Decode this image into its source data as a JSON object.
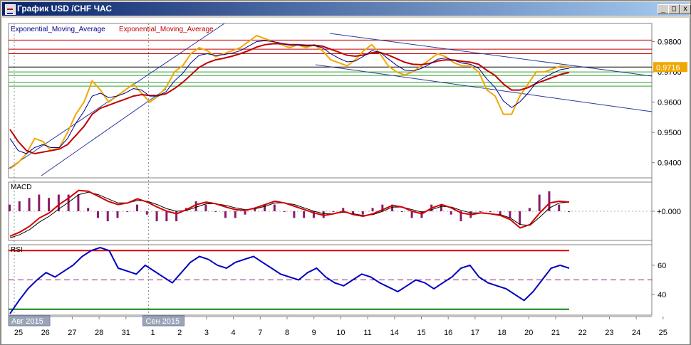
{
  "window": {
    "title": "График USD /CHF  ЧАС",
    "min_glyph": "_",
    "max_glyph": "□",
    "close_glyph": "x"
  },
  "chart_data": [
    {
      "type": "line",
      "panel": "price",
      "legend": [
        "Exponential_Moving_Average",
        "Exponential_Moving_Average"
      ],
      "legend_colors": [
        "#00008b",
        "#c00000"
      ],
      "y_ticks": [
        0.94,
        0.95,
        0.96,
        0.97,
        0.98
      ],
      "y_tick_labels": [
        "0.9400",
        "0.9500",
        "0.9600",
        "0.9700",
        "0.9800"
      ],
      "ylim": [
        0.935,
        0.986
      ],
      "current_price_label": "0.9716",
      "current_price": 0.9716,
      "x_ticks": [
        "25",
        "26",
        "27",
        "28",
        "31",
        "1",
        "2",
        "3",
        "4",
        "7",
        "8",
        "9",
        "10",
        "11",
        "14",
        "15",
        "16",
        "17",
        "18",
        "20",
        "21",
        "22",
        "23",
        "24",
        "25"
      ],
      "x_month_labels": [
        {
          "label": "Авг 2015",
          "at": "25"
        },
        {
          "label": "Сен 2015",
          "at": "1"
        }
      ],
      "horizontal_levels_red": [
        0.9805,
        0.9775,
        0.976
      ],
      "horizontal_level_black": 0.9716,
      "horizontal_levels_green": [
        0.97,
        0.9688,
        0.9666,
        0.9653
      ],
      "price": [
        0.938,
        0.94,
        0.943,
        0.948,
        0.947,
        0.944,
        0.945,
        0.95,
        0.956,
        0.96,
        0.967,
        0.964,
        0.96,
        0.962,
        0.964,
        0.966,
        0.963,
        0.96,
        0.962,
        0.965,
        0.97,
        0.972,
        0.976,
        0.978,
        0.977,
        0.975,
        0.976,
        0.977,
        0.978,
        0.98,
        0.982,
        0.981,
        0.98,
        0.979,
        0.978,
        0.979,
        0.978,
        0.979,
        0.977,
        0.974,
        0.973,
        0.972,
        0.974,
        0.977,
        0.979,
        0.976,
        0.972,
        0.97,
        0.969,
        0.97,
        0.972,
        0.974,
        0.976,
        0.975,
        0.973,
        0.972,
        0.972,
        0.97,
        0.964,
        0.962,
        0.956,
        0.956,
        0.962,
        0.966,
        0.97,
        0.97,
        0.971,
        0.972,
        0.9716
      ],
      "ema_fast": [
        0.948,
        0.944,
        0.943,
        0.945,
        0.946,
        0.945,
        0.945,
        0.948,
        0.953,
        0.957,
        0.962,
        0.963,
        0.9615,
        0.962,
        0.963,
        0.9645,
        0.964,
        0.962,
        0.962,
        0.9635,
        0.967,
        0.9695,
        0.973,
        0.9755,
        0.976,
        0.9755,
        0.9757,
        0.9762,
        0.977,
        0.9785,
        0.98,
        0.9803,
        0.98,
        0.9795,
        0.9788,
        0.9789,
        0.9785,
        0.9787,
        0.978,
        0.976,
        0.9745,
        0.9733,
        0.9736,
        0.9752,
        0.977,
        0.9765,
        0.9743,
        0.9722,
        0.9706,
        0.9703,
        0.9711,
        0.9725,
        0.9742,
        0.9746,
        0.9738,
        0.9729,
        0.9725,
        0.9712,
        0.9676,
        0.9648,
        0.9604,
        0.9582,
        0.9601,
        0.963,
        0.9665,
        0.9682,
        0.9696,
        0.9708,
        0.9712
      ],
      "ema_slow": [
        0.951,
        0.947,
        0.944,
        0.943,
        0.9435,
        0.944,
        0.9445,
        0.946,
        0.949,
        0.952,
        0.956,
        0.958,
        0.959,
        0.96,
        0.961,
        0.962,
        0.9625,
        0.9622,
        0.9622,
        0.9628,
        0.9645,
        0.9665,
        0.969,
        0.9715,
        0.973,
        0.974,
        0.9745,
        0.9752,
        0.976,
        0.977,
        0.9782,
        0.979,
        0.9793,
        0.9793,
        0.979,
        0.979,
        0.9788,
        0.9788,
        0.9785,
        0.9775,
        0.9765,
        0.9755,
        0.9752,
        0.9756,
        0.9763,
        0.9764,
        0.9756,
        0.9744,
        0.9732,
        0.9725,
        0.9724,
        0.9728,
        0.9736,
        0.974,
        0.9739,
        0.9735,
        0.9732,
        0.9725,
        0.9705,
        0.9688,
        0.966,
        0.964,
        0.964,
        0.9648,
        0.9662,
        0.9672,
        0.9682,
        0.9692,
        0.9698
      ]
    },
    {
      "type": "line",
      "panel": "macd",
      "title": "MACD",
      "y_tick_labels": [
        "+0.000"
      ],
      "y_ticks": [
        0
      ],
      "ylim": [
        -0.0035,
        0.0035
      ],
      "macd": [
        -0.003,
        -0.0025,
        -0.0018,
        -0.0008,
        -0.0002,
        0.0008,
        0.0016,
        0.0025,
        0.0024,
        0.0018,
        0.0012,
        0.0008,
        0.001,
        0.0015,
        0.0011,
        0.0005,
        0.0,
        -0.0003,
        0.0002,
        0.0008,
        0.0011,
        0.0009,
        0.0005,
        0.0002,
        0.0001,
        0.0004,
        0.0008,
        0.0012,
        0.001,
        0.0006,
        0.0002,
        -0.0002,
        -0.0005,
        -0.0003,
        0.0,
        -0.0004,
        -0.0006,
        -0.0003,
        0.0002,
        0.0007,
        0.0005,
        0.0,
        -0.0003,
        0.0004,
        0.0008,
        0.0004,
        -0.0002,
        -0.0004,
        -0.0002,
        -0.0003,
        -0.0005,
        -0.001,
        -0.002,
        -0.0016,
        -0.0002,
        0.001,
        0.0012,
        0.0011
      ],
      "signal": [
        -0.0032,
        -0.0028,
        -0.0022,
        -0.0013,
        -0.0006,
        0.0003,
        0.0011,
        0.002,
        0.0023,
        0.002,
        0.0015,
        0.001,
        0.001,
        0.0013,
        0.0012,
        0.0008,
        0.0003,
        0.0,
        0.0001,
        0.0005,
        0.0009,
        0.0009,
        0.0007,
        0.0004,
        0.0002,
        0.0003,
        0.0006,
        0.001,
        0.001,
        0.0008,
        0.0004,
        0.0,
        -0.0003,
        -0.0003,
        -0.0001,
        -0.0003,
        -0.0005,
        -0.0004,
        0.0,
        0.0005,
        0.0005,
        0.0002,
        -0.0001,
        0.0002,
        0.0006,
        0.0005,
        0.0001,
        -0.0002,
        -0.0002,
        -0.0003,
        -0.0004,
        -0.0008,
        -0.0016,
        -0.0017,
        -0.0007,
        0.0004,
        0.001,
        0.0011
      ]
    },
    {
      "type": "line",
      "panel": "rsi",
      "title": "RSI",
      "y_tick_labels": [
        "60",
        "40"
      ],
      "y_ticks": [
        60,
        40
      ],
      "ylim": [
        26,
        74
      ],
      "levels": {
        "upper": 70,
        "middle": 50,
        "lower": 30
      },
      "values": [
        27,
        36,
        44,
        50,
        55,
        52,
        56,
        60,
        66,
        70,
        72,
        70,
        58,
        56,
        54,
        60,
        56,
        52,
        48,
        55,
        62,
        66,
        64,
        60,
        58,
        62,
        64,
        66,
        62,
        58,
        54,
        52,
        50,
        55,
        58,
        52,
        48,
        46,
        50,
        54,
        52,
        48,
        45,
        42,
        46,
        50,
        48,
        44,
        48,
        52,
        58,
        60,
        52,
        48,
        46,
        44,
        40,
        36,
        42,
        50,
        58,
        60,
        58
      ]
    }
  ]
}
